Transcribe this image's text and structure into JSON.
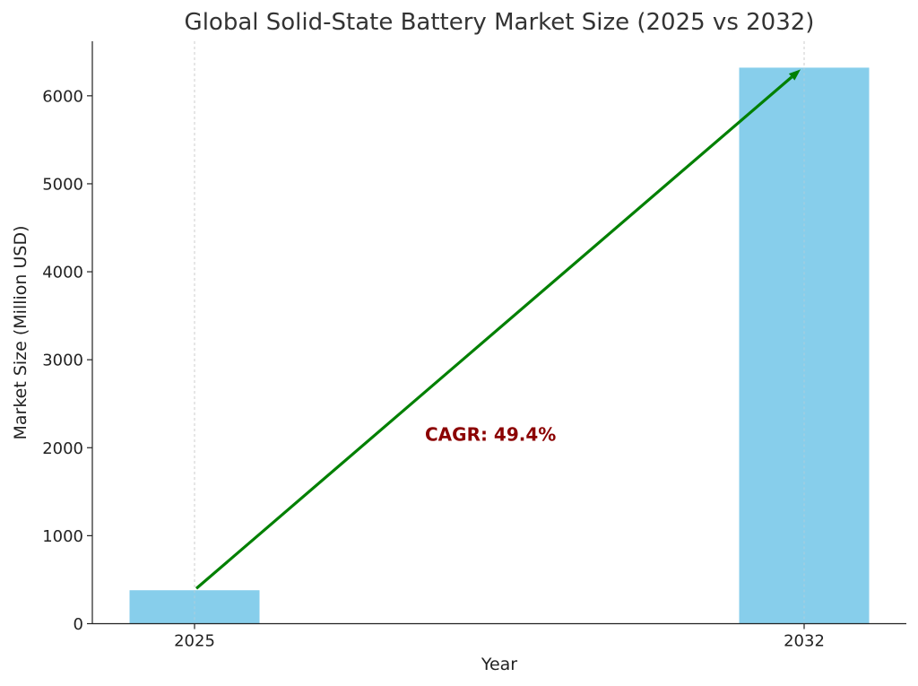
{
  "chart_data": {
    "type": "bar",
    "title": "Global Solid-State Battery Market Size (2025 vs 2032)",
    "xlabel": "Year",
    "ylabel": "Market Size (Million USD)",
    "categories": [
      "2025",
      "2032"
    ],
    "values": [
      380,
      6320
    ],
    "ylim": [
      0,
      6620
    ],
    "yticks": [
      0,
      1000,
      2000,
      3000,
      4000,
      5000,
      6000
    ],
    "grid": "vertical dashed at category positions",
    "bar_color": "#87CEEB",
    "arrow": {
      "from_category": "2025",
      "from_value": 400,
      "to_category": "2032",
      "to_value": 6300,
      "color": "#008000"
    },
    "annotation": {
      "text": "CAGR: 49.4%",
      "color": "#8B0000",
      "x_category_fraction": 0.5,
      "y_value": 2150
    }
  }
}
